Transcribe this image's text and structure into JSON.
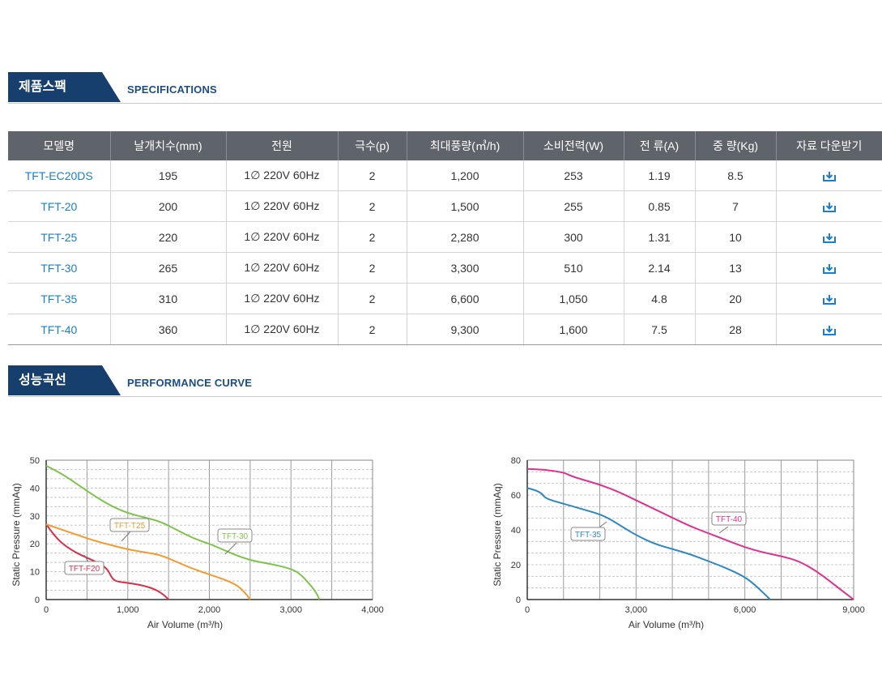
{
  "spec_section": {
    "title": "제품스팩",
    "subtitle": "SPECIFICATIONS"
  },
  "perf_section": {
    "title": "성능곡선",
    "subtitle": "PERFORMANCE CURVE"
  },
  "table": {
    "headers": [
      "모델명",
      "날개치수(mm)",
      "전원",
      "극수(p)",
      "최대풍량(㎥/h)",
      "소비전력(W)",
      "전 류(A)",
      "중 량(Kg)",
      "자료 다운받기"
    ],
    "rows": [
      [
        "TFT-EC20DS",
        "195",
        "1∅ 220V 60Hz",
        "2",
        "1,200",
        "253",
        "1.19",
        "8.5"
      ],
      [
        "TFT-20",
        "200",
        "1∅ 220V 60Hz",
        "2",
        "1,500",
        "255",
        "0.85",
        "7"
      ],
      [
        "TFT-25",
        "220",
        "1∅ 220V 60Hz",
        "2",
        "2,280",
        "300",
        "1.31",
        "10"
      ],
      [
        "TFT-30",
        "265",
        "1∅ 220V 60Hz",
        "2",
        "3,300",
        "510",
        "2.14",
        "13"
      ],
      [
        "TFT-35",
        "310",
        "1∅ 220V 60Hz",
        "2",
        "6,600",
        "1,050",
        "4.8",
        "20"
      ],
      [
        "TFT-40",
        "360",
        "1∅ 220V 60Hz",
        "2",
        "9,300",
        "1,600",
        "7.5",
        "28"
      ]
    ],
    "download_icon": "download-icon",
    "accent_color": "#1a7fc8"
  },
  "chart_data": [
    {
      "type": "line",
      "xlabel": "Air Volume (m³/h)",
      "ylabel": "Static Pressure (mmAq)",
      "xlim": [
        0,
        4000
      ],
      "ylim": [
        0,
        50
      ],
      "xticks": [
        "0",
        "1,000",
        "2,000",
        "3,000",
        "4,000"
      ],
      "yticks": [
        "0",
        "10",
        "20",
        "30",
        "40",
        "50"
      ],
      "grid": true,
      "series": [
        {
          "name": "TFT-F20",
          "color": "#d9304a",
          "x": [
            0,
            100,
            200,
            350,
            500,
            650,
            750,
            800,
            850,
            1000,
            1200,
            1350,
            1450,
            1500
          ],
          "y": [
            27,
            23,
            20,
            17,
            15,
            13,
            11,
            8,
            6.5,
            6,
            5,
            3.5,
            1.5,
            0
          ]
        },
        {
          "name": "TFT-T25",
          "color": "#f5992b",
          "x": [
            0,
            200,
            400,
            600,
            800,
            1000,
            1200,
            1400,
            1600,
            1800,
            2000,
            2200,
            2350,
            2450,
            2500
          ],
          "y": [
            27,
            25,
            23,
            21,
            19.5,
            18,
            17,
            16,
            13.5,
            11,
            9,
            7,
            5,
            2,
            0
          ]
        },
        {
          "name": "TFT-30",
          "color": "#7ec44a",
          "x": [
            0,
            200,
            400,
            600,
            800,
            1000,
            1200,
            1400,
            1600,
            1800,
            2000,
            2200,
            2400,
            2600,
            2800,
            3000,
            3100,
            3200,
            3300,
            3350
          ],
          "y": [
            48,
            45,
            41,
            37,
            33.5,
            31,
            29.5,
            28,
            25,
            22,
            20,
            17.5,
            15,
            13.5,
            12.5,
            11,
            9.5,
            6.5,
            3,
            0
          ]
        }
      ],
      "annotations": [
        "TFT-T25",
        "TFT-30",
        "TFT-F20"
      ]
    },
    {
      "type": "line",
      "xlabel": "Air Volume (m³/h)",
      "ylabel": "Static Pressure (mmAq)",
      "xlim": [
        0,
        9000
      ],
      "ylim": [
        0,
        80
      ],
      "xticks": [
        "0",
        "3,000",
        "6,000",
        "9,000"
      ],
      "yticks": [
        "0",
        "20",
        "40",
        "60",
        "80"
      ],
      "grid": true,
      "series": [
        {
          "name": "TFT-35",
          "color": "#2f86c6",
          "x": [
            0,
            200,
            400,
            500,
            1000,
            1500,
            2000,
            2300,
            2600,
            3000,
            3500,
            4000,
            4500,
            5000,
            5500,
            6000,
            6300,
            6500,
            6700
          ],
          "y": [
            64,
            63,
            61,
            58,
            55,
            52,
            49,
            46,
            42,
            37,
            32,
            29,
            26,
            22,
            18,
            13,
            8,
            4,
            0
          ]
        },
        {
          "name": "TFT-40",
          "color": "#e0318d",
          "x": [
            0,
            500,
            1000,
            1200,
            1500,
            2000,
            2500,
            3000,
            3500,
            4000,
            4500,
            5000,
            5500,
            6000,
            6500,
            7000,
            7500,
            8000,
            8500,
            9000
          ],
          "y": [
            75,
            74.5,
            73,
            71,
            69,
            66,
            62,
            57,
            52,
            47,
            42,
            38,
            34,
            30,
            27,
            25,
            22,
            16,
            8,
            0
          ]
        }
      ],
      "annotations": [
        "TFT-35",
        "TFT-40"
      ]
    }
  ]
}
